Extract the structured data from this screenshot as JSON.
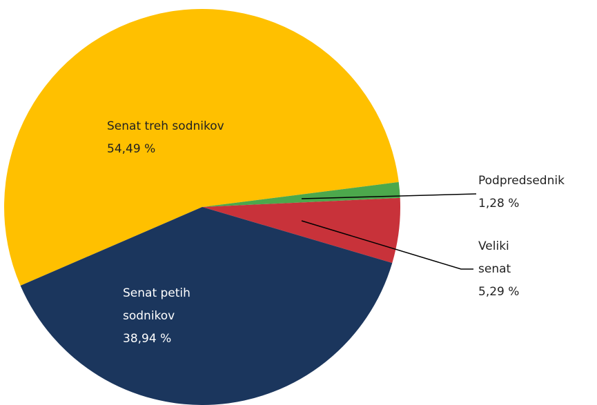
{
  "chart_data": {
    "type": "pie",
    "categories": [
      "Senat treh sodnikov",
      "Podpredsednik",
      "Veliki senat",
      "Senat petih sodnikov"
    ],
    "values": [
      54.49,
      1.28,
      5.29,
      38.94
    ],
    "value_labels": [
      "54,49 %",
      "1,28 %",
      "5,29 %",
      "38,94 %"
    ],
    "colors": [
      "#ffc000",
      "#4ca84c",
      "#c8323a",
      "#1b365d"
    ]
  }
}
